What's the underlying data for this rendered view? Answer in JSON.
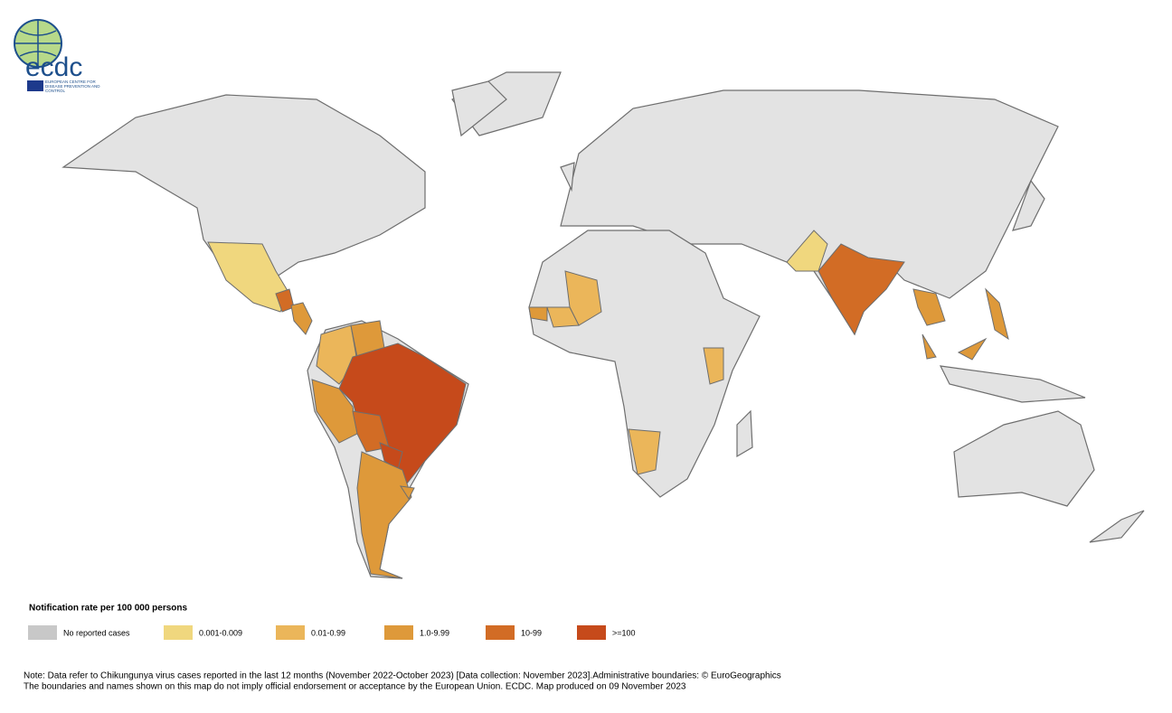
{
  "logo": {
    "name": "ecdc",
    "agency": "EUROPEAN CENTRE FOR DISEASE PREVENTION AND CONTROL"
  },
  "legend": {
    "title": "Notification rate per 100 000 persons",
    "items": [
      {
        "label": "No reported cases",
        "color": "#c8c8c8"
      },
      {
        "label": "0.001-0.009",
        "color": "#f0d77e"
      },
      {
        "label": "0.01-0.99",
        "color": "#ebb65a"
      },
      {
        "label": "1.0-9.99",
        "color": "#de993a"
      },
      {
        "label": "10-99",
        "color": "#d26c25"
      },
      {
        "label": ">=100",
        "color": "#c64a1b"
      }
    ]
  },
  "notes": [
    "Note: Data refer to Chikungunya virus cases reported in the last 12 months (November 2022-October 2023) [Data collection: November 2023].Administrative boundaries: © EuroGeographics",
    "The boundaries and names shown on this map do not imply official endorsement or acceptance by the European Union. ECDC. Map produced on 09 November 2023"
  ]
}
